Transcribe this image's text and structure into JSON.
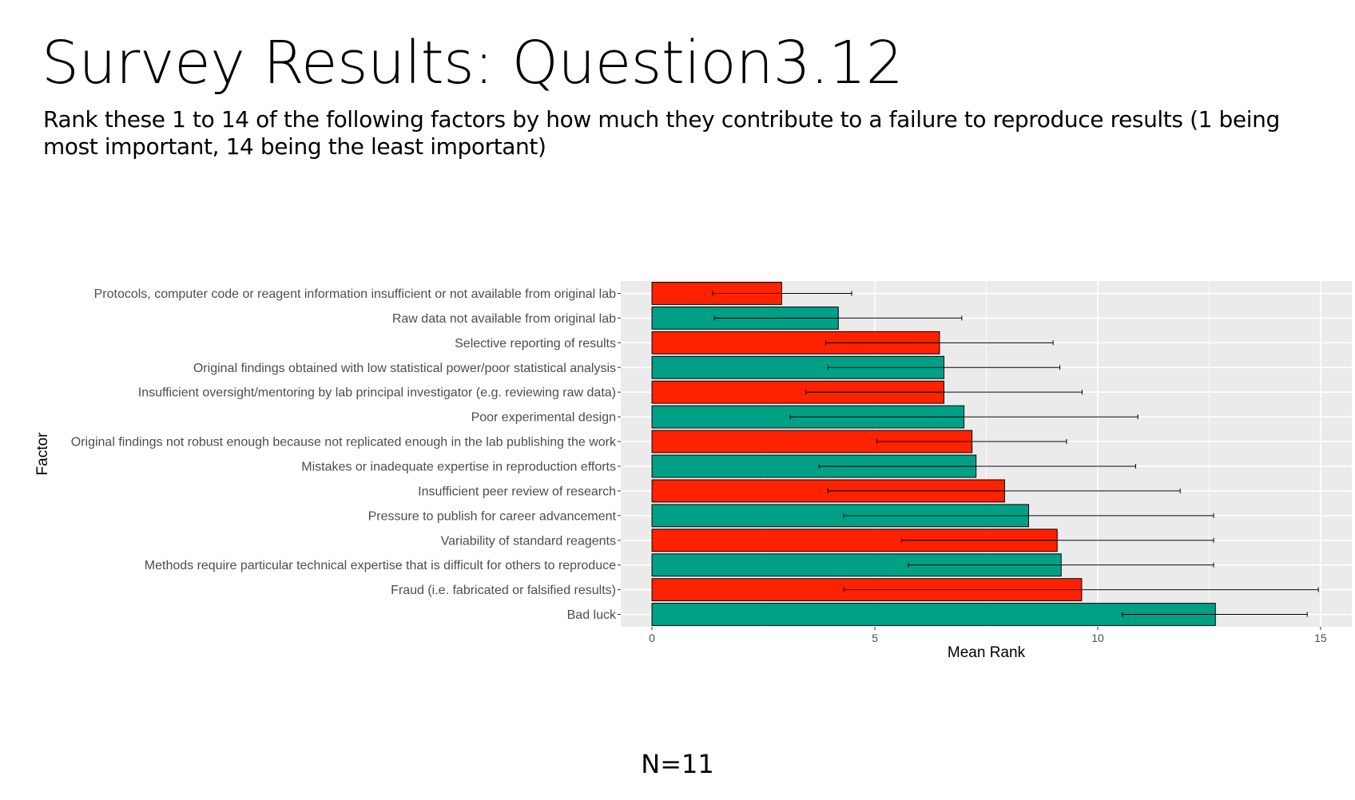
{
  "slide": {
    "title": "Survey Results: Question3.12",
    "subtitle": "Rank these 1 to 14 of the following factors by how much they contribute to a failure to reproduce results (1 being most important, 14 being the least important)",
    "footnote": "N=11"
  },
  "colors": {
    "red": "#ff2200",
    "teal": "#00a087",
    "panel": "#ebebeb",
    "grid": "#ffffff",
    "errorbar": "#000000"
  },
  "chart_data": {
    "type": "bar",
    "orientation": "horizontal",
    "xlabel": "Mean Rank",
    "ylabel": "Factor",
    "xlim": [
      -0.7,
      15.7
    ],
    "xticks": [
      0,
      5,
      10,
      15
    ],
    "grid": true,
    "categories": [
      "Protocols, computer code or reagent information insufficient or not available from original lab",
      "Raw data not available from original lab",
      "Selective reporting of results",
      "Original findings obtained with low statistical power/poor statistical analysis",
      "Insufficient oversight/mentoring by lab principal investigator (e.g. reviewing raw data)",
      "Poor experimental design",
      "Original findings not robust enough because not replicated enough in the lab publishing the work",
      "Mistakes or inadequate expertise in reproduction efforts",
      "Insufficient peer review of research",
      "Pressure to publish for career advancement",
      "Variability of standard reagents",
      "Methods require particular technical expertise that is difficult for others to reproduce",
      "Fraud (i.e. fabricated or falsified results)",
      "Bad luck"
    ],
    "values": [
      2.91,
      4.18,
      6.45,
      6.55,
      6.55,
      7.0,
      7.18,
      7.27,
      7.91,
      8.45,
      9.09,
      9.18,
      9.64,
      12.64
    ],
    "error_low": [
      1.36,
      1.4,
      3.9,
      3.95,
      3.45,
      3.1,
      5.05,
      3.75,
      3.95,
      4.3,
      5.6,
      5.75,
      4.3,
      10.55
    ],
    "error_high": [
      4.48,
      6.95,
      9.0,
      9.15,
      9.65,
      10.9,
      9.3,
      10.85,
      11.85,
      12.6,
      12.6,
      12.6,
      14.95,
      14.7
    ],
    "bar_colors": [
      "red",
      "teal",
      "red",
      "teal",
      "red",
      "teal",
      "red",
      "teal",
      "red",
      "teal",
      "red",
      "teal",
      "red",
      "teal"
    ]
  }
}
